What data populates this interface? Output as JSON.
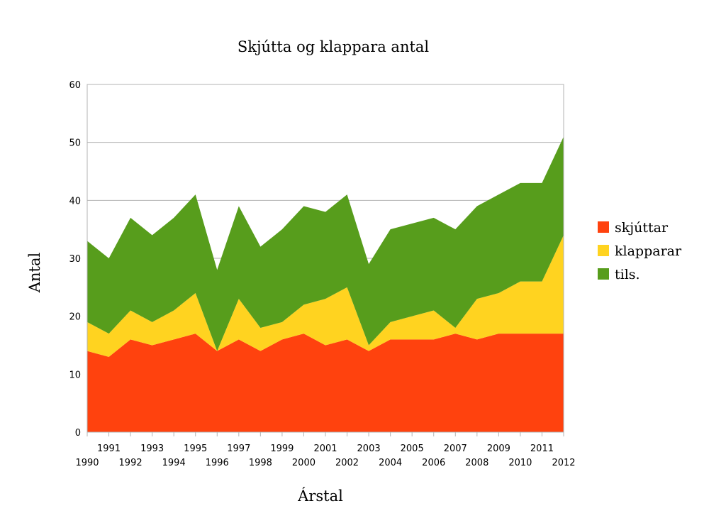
{
  "chart_data": {
    "type": "area",
    "stacked": true,
    "title": "Skjútta og klappara antal",
    "xlabel": "Árstal",
    "ylabel": "Antal",
    "ylim": [
      0,
      60
    ],
    "yticks": [
      0,
      10,
      20,
      30,
      40,
      50,
      60
    ],
    "grid": true,
    "legend_position": "right",
    "categories": [
      "1990",
      "1991",
      "1992",
      "1993",
      "1994",
      "1995",
      "1996",
      "1997",
      "1998",
      "1999",
      "2000",
      "2001",
      "2002",
      "2003",
      "2004",
      "2005",
      "2006",
      "2007",
      "2008",
      "2009",
      "2010",
      "2011",
      "2012"
    ],
    "series": [
      {
        "name": "skjúttar",
        "color": "#ff420e",
        "values": [
          14,
          13,
          16,
          15,
          16,
          17,
          14,
          16,
          14,
          16,
          17,
          15,
          16,
          14,
          16,
          16,
          16,
          17,
          16,
          17,
          17,
          17,
          17
        ]
      },
      {
        "name": "klapparar",
        "color": "#ffd320",
        "values": [
          5,
          4,
          5,
          4,
          5,
          7,
          0,
          7,
          4,
          3,
          5,
          8,
          9,
          1,
          3,
          4,
          5,
          1,
          7,
          7,
          9,
          9,
          17
        ]
      },
      {
        "name": "tils.",
        "color": "#579d1c",
        "values": [
          14,
          13,
          16,
          15,
          16,
          17,
          14,
          16,
          14,
          16,
          17,
          15,
          16,
          14,
          16,
          16,
          16,
          17,
          16,
          17,
          17,
          17,
          17
        ]
      }
    ]
  }
}
